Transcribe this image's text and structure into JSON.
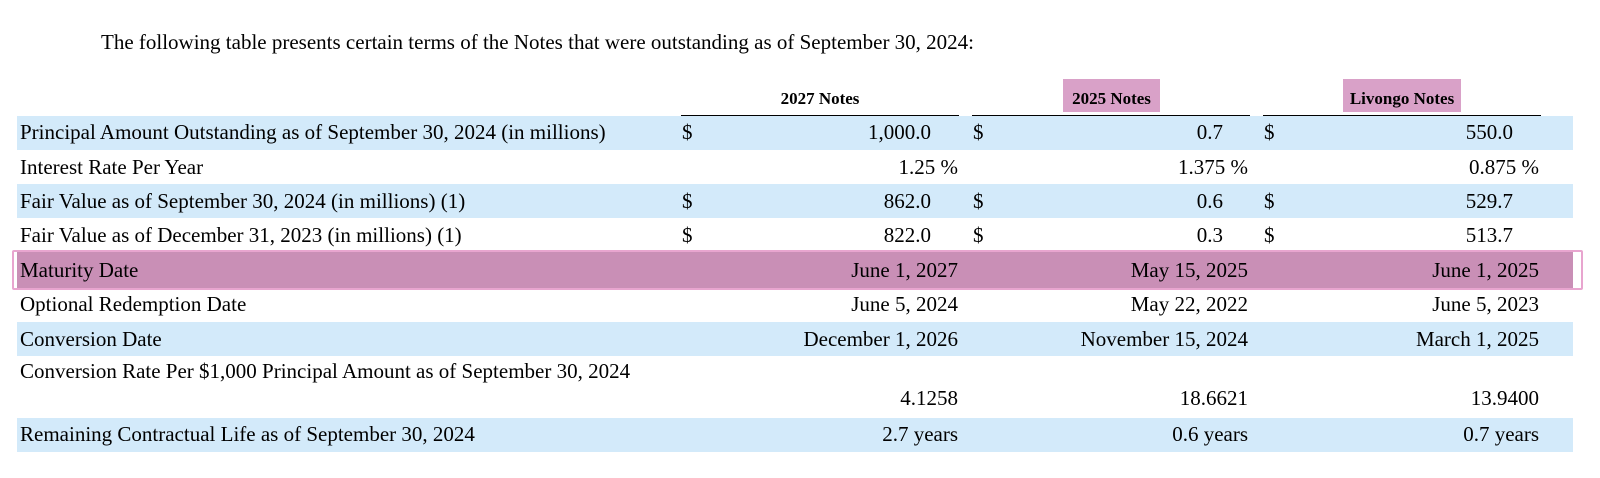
{
  "intro_text": "The following table presents certain terms of the Notes that were outstanding as of September 30, 2024:",
  "colors": {
    "band": "#d3eafa",
    "highlight": "#d9a1c8",
    "maturity_row": "#c98fb6",
    "maturity_border": "#e8a5cf"
  },
  "columns": [
    "2027 Notes",
    "2025 Notes",
    "Livongo Notes"
  ],
  "rows": [
    {
      "label": "Principal Amount Outstanding as of September 30, 2024 (in millions)",
      "d1": "$",
      "v1": "1,000.0",
      "d2": "$",
      "v2": "0.7",
      "d3": "$",
      "v3": "550.0"
    },
    {
      "label": "Interest Rate Per Year",
      "d1": "",
      "v1": "1.25 %",
      "d2": "",
      "v2": "1.375 %",
      "d3": "",
      "v3": "0.875 %"
    },
    {
      "label": "Fair Value as of September 30, 2024 (in millions) (1)",
      "d1": "$",
      "v1": "862.0",
      "d2": "$",
      "v2": "0.6",
      "d3": "$",
      "v3": "529.7"
    },
    {
      "label": "Fair Value as of December 31, 2023 (in millions) (1)",
      "d1": "$",
      "v1": "822.0",
      "d2": "$",
      "v2": "0.3",
      "d3": "$",
      "v3": "513.7"
    },
    {
      "label": "Maturity Date",
      "d1": "",
      "v1": "June 1, 2027",
      "d2": "",
      "v2": "May 15, 2025",
      "d3": "",
      "v3": "June 1, 2025"
    },
    {
      "label": "Optional Redemption Date",
      "d1": "",
      "v1": "June 5, 2024",
      "d2": "",
      "v2": "May 22, 2022",
      "d3": "",
      "v3": "June 5, 2023"
    },
    {
      "label": "Conversion Date",
      "d1": "",
      "v1": "December 1, 2026",
      "d2": "",
      "v2": "November 15, 2024",
      "d3": "",
      "v3": "March 1, 2025"
    },
    {
      "label": "Conversion Rate Per $1,000 Principal Amount as of September 30, 2024",
      "d1": "",
      "v1": "4.1258",
      "d2": "",
      "v2": "18.6621",
      "d3": "",
      "v3": "13.9400"
    },
    {
      "label": "Remaining Contractual Life as of September 30, 2024",
      "d1": "",
      "v1": "2.7 years",
      "d2": "",
      "v2": "0.6 years",
      "d3": "",
      "v3": "0.7 years"
    }
  ]
}
